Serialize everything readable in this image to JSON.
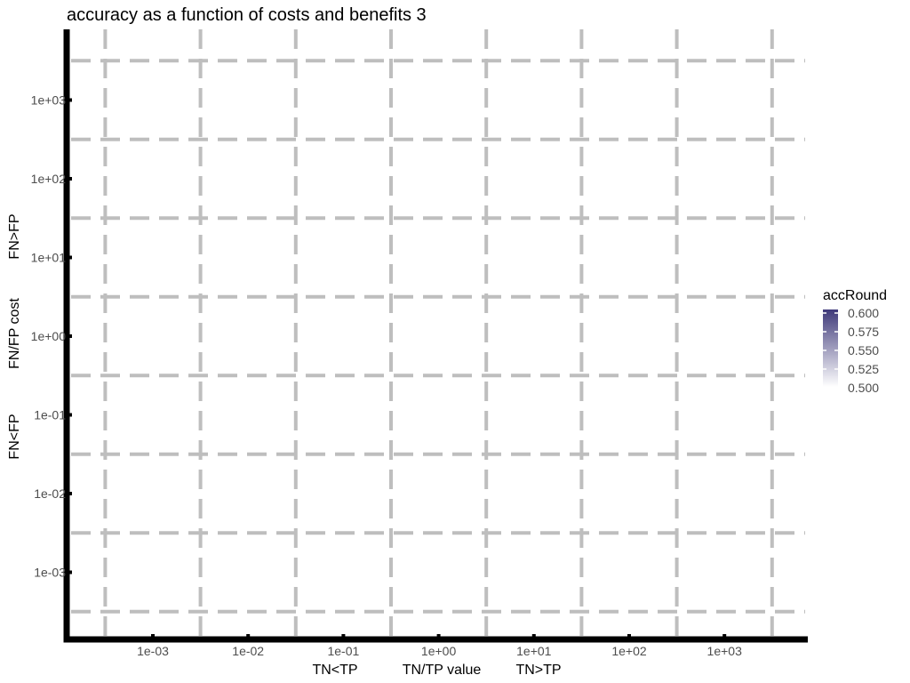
{
  "chart_data": {
    "type": "heatmap",
    "title": "accuracy as a function of costs and benefits 3",
    "x_axis": {
      "scale": "log10",
      "tick_values": [
        0.001,
        0.01,
        0.1,
        1,
        10,
        100,
        1000
      ],
      "tick_labels": [
        "1e-03",
        "1e-02",
        "1e-01",
        "1e+00",
        "1e+01",
        "1e+02",
        "1e+03"
      ],
      "label_parts": [
        "TN<TP",
        "TN/TP value",
        "TN>TP"
      ]
    },
    "y_axis": {
      "scale": "log10",
      "tick_values": [
        0.001,
        0.01,
        0.1,
        1,
        10,
        100,
        1000
      ],
      "tick_labels": [
        "1e-03",
        "1e-02",
        "1e-01",
        "1e+00",
        "1e+01",
        "1e+02",
        "1e+03"
      ],
      "label_parts": [
        "FN<FP",
        "FN/FP cost",
        "FN>FP"
      ]
    },
    "grid": true,
    "cells": [],
    "legend": {
      "title": "accRound",
      "position": "right",
      "range": [
        0.5,
        0.6
      ],
      "breaks": [
        "0.600",
        "0.575",
        "0.550",
        "0.525",
        "0.500"
      ],
      "color_low": "#ffffff",
      "color_high": "#3f3a7a"
    }
  }
}
